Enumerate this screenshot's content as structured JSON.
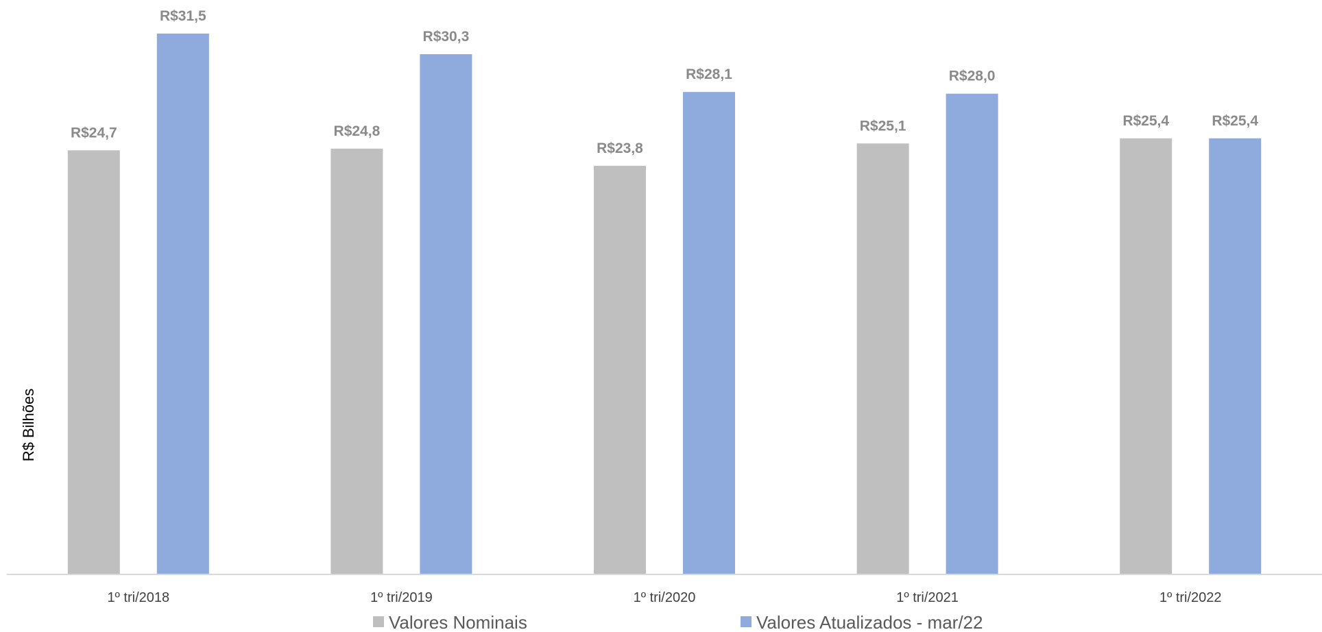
{
  "chart_data": {
    "type": "bar",
    "title": "",
    "xlabel": "",
    "ylabel": "R$ Bilhões",
    "categories": [
      "1º tri/2018",
      "1º tri/2019",
      "1º tri/2020",
      "1º tri/2021",
      "1º tri/2022"
    ],
    "series": [
      {
        "name": "Valores Nominais",
        "color": "#bfbfbf",
        "values": [
          24.7,
          24.8,
          23.8,
          25.1,
          25.4
        ],
        "labels": [
          "R$24,7",
          "R$24,8",
          "R$23,8",
          "R$25,1",
          "R$25,4"
        ]
      },
      {
        "name": "Valores Atualizados - mar/22",
        "color": "#8faadc",
        "values": [
          31.5,
          30.3,
          28.1,
          28.0,
          25.4
        ],
        "labels": [
          "R$31,5",
          "R$30,3",
          "R$28,1",
          "R$28,0",
          "R$25,4"
        ]
      }
    ],
    "ylim": [
      0,
      31.5
    ],
    "grid": false,
    "legend_position": "bottom"
  }
}
